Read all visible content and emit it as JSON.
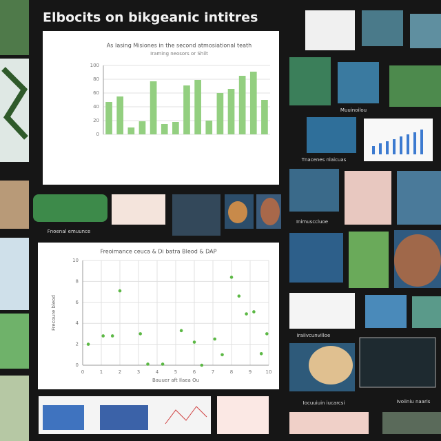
{
  "header": {
    "title": "Elbocits on bikgeanic intitres"
  },
  "bar_chart": {
    "type": "bar",
    "title": "As Iasing Misiones in the second atmosiational teath",
    "subtitle": "Iraming neosors or Shilt",
    "categories": [
      null,
      null,
      null,
      null,
      null,
      null,
      null,
      null,
      null,
      null,
      null,
      null,
      null,
      null,
      null
    ],
    "values": [
      47,
      55,
      10,
      19,
      77,
      15,
      18,
      71,
      79,
      20,
      60,
      66,
      85,
      91,
      50
    ],
    "color": "#93cf80",
    "ylim": [
      0,
      100
    ],
    "yticks": [
      0,
      20,
      40,
      60,
      80,
      100
    ],
    "grid": true
  },
  "scatter_chart": {
    "type": "scatter",
    "title": "Freoimance ceuca & Di batra Bleod & DAP",
    "xlabel": "Bauuer aft Ilaea Ou",
    "ylabel": "Frecoure bleod",
    "x": [
      0.3,
      1.1,
      1.6,
      2.0,
      3.1,
      3.5,
      4.3,
      5.3,
      6.0,
      6.4,
      7.1,
      7.5,
      8.0,
      8.4,
      8.8,
      9.2,
      9.6,
      9.9
    ],
    "y": [
      2.0,
      2.8,
      2.8,
      7.1,
      3.0,
      0.1,
      0.1,
      3.3,
      2.2,
      0,
      2.5,
      1.0,
      8.4,
      6.6,
      4.9,
      5.1,
      1.1,
      3.0
    ],
    "color": "#5cb845",
    "xlim": [
      0,
      10
    ],
    "ylim": [
      0,
      10
    ],
    "xticks": [
      0,
      1,
      2,
      3,
      4,
      5,
      6,
      7,
      8,
      9,
      10
    ],
    "yticks": [
      0,
      2,
      4,
      6,
      8,
      10
    ],
    "grid": true
  },
  "captions": [
    "Fnoenal emuunce",
    "Muuinoilou",
    "Tnacenes nlaicuas",
    "Inimusccluoe",
    "Iraiivcunvilloe",
    "Ivoiiniu naaris",
    "Iocuuiuin iucarcsi"
  ]
}
